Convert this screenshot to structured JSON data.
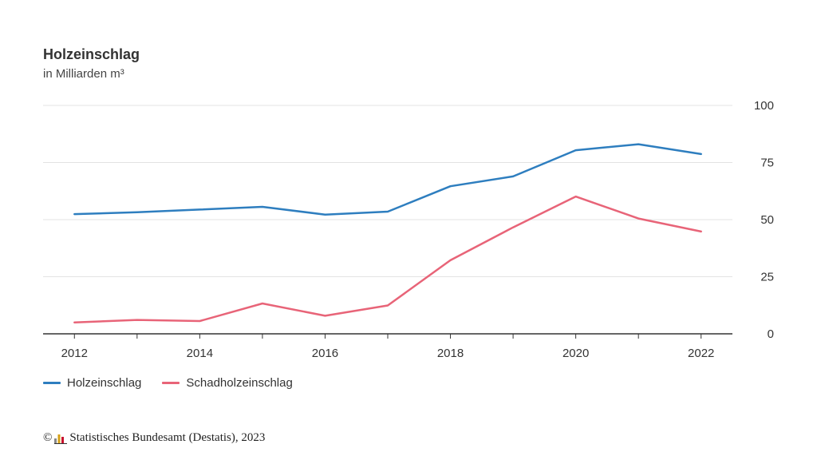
{
  "chart_data": {
    "type": "line",
    "title": "Holzeinschlag",
    "subtitle": "in Milliarden m³",
    "x": [
      2012,
      2013,
      2014,
      2015,
      2016,
      2017,
      2018,
      2019,
      2020,
      2021,
      2022
    ],
    "x_tick_labels": [
      "2012",
      "2014",
      "2016",
      "2018",
      "2020",
      "2022"
    ],
    "x_tick_values": [
      2012,
      2014,
      2016,
      2018,
      2020,
      2022
    ],
    "xlim": [
      2011.5,
      2022.5
    ],
    "ylim": [
      0,
      100
    ],
    "y_ticks": [
      0,
      25,
      50,
      75,
      100
    ],
    "y_axis_side": "right",
    "grid": true,
    "legend_position": "bottom-left",
    "series": [
      {
        "name": "Holzeinschlag",
        "color": "#2e7ebf",
        "values": [
          52.4,
          53.2,
          54.4,
          55.6,
          52.2,
          53.5,
          64.6,
          68.9,
          80.4,
          83.0,
          78.7
        ]
      },
      {
        "name": "Schadholzeinschlag",
        "color": "#e86478",
        "values": [
          5.0,
          6.1,
          5.6,
          13.3,
          7.9,
          12.4,
          32.2,
          46.6,
          60.1,
          50.5,
          44.8
        ]
      }
    ]
  },
  "source": {
    "copyright_symbol": "©",
    "text": "Statistisches Bundesamt (Destatis), 2023",
    "logo": "destatis-logo"
  }
}
